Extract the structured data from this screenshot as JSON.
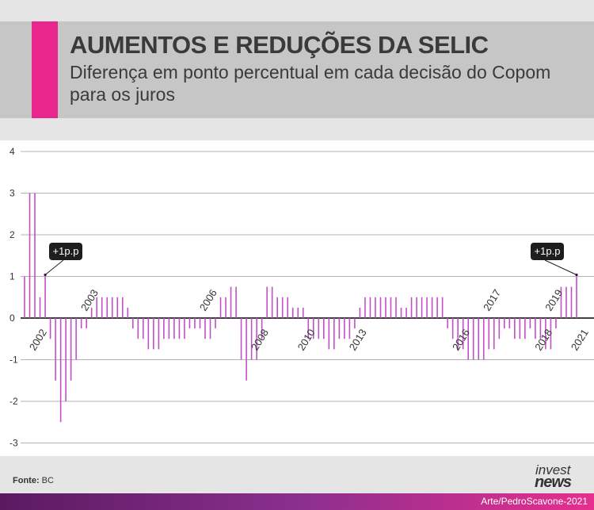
{
  "header": {
    "title": "AUMENTOS E REDUÇÕES DA SELIC",
    "subtitle": "Diferença em ponto percentual em cada decisão do Copom para os juros",
    "accent_color": "#e8268c"
  },
  "chart_data": {
    "type": "bar",
    "bar_color": "#c24fc7",
    "ylim": [
      -3.5,
      4
    ],
    "yticks": [
      "4",
      "3",
      "2",
      "1",
      "0",
      "-1",
      "-2",
      "-3"
    ],
    "grid": true,
    "year_labels": [
      "2002",
      "2003",
      "2006",
      "2008",
      "2010",
      "2013",
      "2016",
      "2017",
      "2018",
      "2019",
      "2021"
    ],
    "values": [
      1,
      3,
      3,
      0.5,
      1,
      -0.5,
      -1.5,
      -2.5,
      -2,
      -1.5,
      -1,
      -0.25,
      -0.25,
      0.25,
      0.5,
      0.5,
      0.5,
      0.5,
      0.5,
      0.5,
      0.25,
      -0.25,
      -0.5,
      -0.5,
      -0.75,
      -0.75,
      -0.75,
      -0.5,
      -0.5,
      -0.5,
      -0.5,
      -0.5,
      -0.25,
      -0.25,
      -0.25,
      -0.5,
      -0.5,
      -0.25,
      0.5,
      0.5,
      0.75,
      0.75,
      -1,
      -1.5,
      -1,
      -1,
      -0.5,
      0.75,
      0.75,
      0.5,
      0.5,
      0.5,
      0.25,
      0.25,
      0.25,
      -0.5,
      -0.5,
      -0.5,
      -0.5,
      -0.75,
      -0.75,
      -0.5,
      -0.5,
      -0.5,
      -0.25,
      0.25,
      0.5,
      0.5,
      0.5,
      0.5,
      0.5,
      0.5,
      0.5,
      0.25,
      0.25,
      0.5,
      0.5,
      0.5,
      0.5,
      0.5,
      0.5,
      0.5,
      -0.25,
      -0.5,
      -0.75,
      -0.75,
      -1,
      -1,
      -1,
      -1,
      -0.75,
      -0.75,
      -0.5,
      -0.25,
      -0.25,
      -0.5,
      -0.5,
      -0.5,
      -0.25,
      -0.5,
      -0.5,
      -0.75,
      -0.75,
      -0.25,
      0.75,
      0.75,
      0.75,
      1
    ],
    "annotations": [
      {
        "text": "+1p.p",
        "value": 1
      },
      {
        "text": "+1p.p",
        "value": 1
      }
    ]
  },
  "footer": {
    "source_label": "Fonte:",
    "source_value": "BC",
    "credit": "Arte/PedroScavone-2021",
    "logo_top": "invest",
    "logo_bottom": "news"
  }
}
